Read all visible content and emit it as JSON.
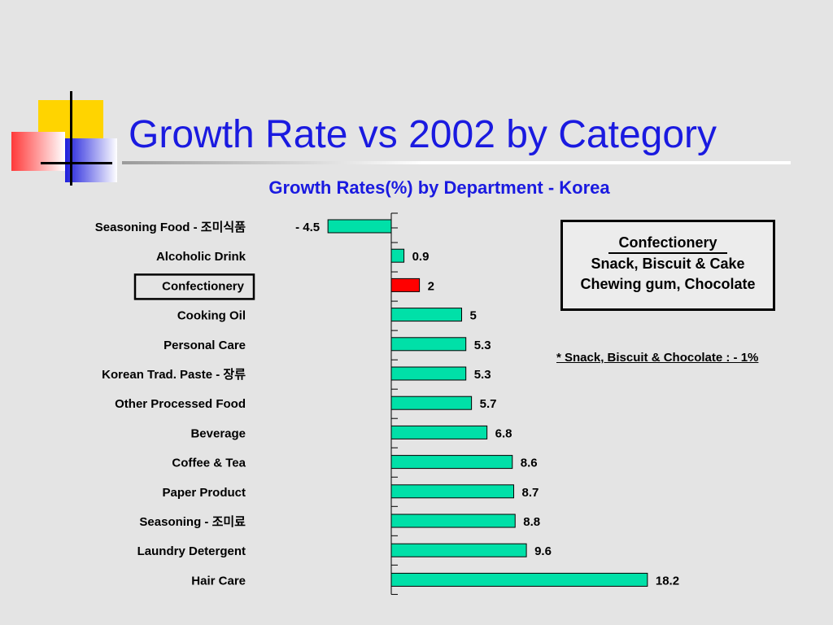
{
  "slide": {
    "title": "Growth Rate vs 2002 by Category"
  },
  "colors": {
    "bar": "#00e0a8",
    "highlight_bar": "#ff0000",
    "title_blue": "#1a1ae0"
  },
  "legend_box": {
    "heading": "Confectionery",
    "line1": "Snack, Biscuit & Cake",
    "line2": "Chewing gum, Chocolate"
  },
  "footnote": "* Snack, Biscuit & Chocolate : - 1%",
  "chart_data": {
    "type": "bar",
    "orientation": "horizontal",
    "title": "Growth Rates(%) by Department - Korea",
    "xlabel": "",
    "ylabel": "",
    "categories": [
      "Seasoning Food - 조미식품",
      "Alcoholic Drink",
      "Confectionery",
      "Cooking Oil",
      "Personal Care",
      "Korean Trad. Paste - 장류",
      "Other Processed Food",
      "Beverage",
      "Coffee & Tea",
      "Paper Product",
      "Seasoning - 조미료",
      "Laundry Detergent",
      "Hair Care"
    ],
    "values": [
      -4.5,
      0.9,
      2,
      5,
      5.3,
      5.3,
      5.7,
      6.8,
      8.6,
      8.7,
      8.8,
      9.6,
      18.2
    ],
    "value_labels": [
      "- 4.5",
      "0.9",
      "2",
      "5",
      "5.3",
      "5.3",
      "5.7",
      "6.8",
      "8.6",
      "8.7",
      "8.8",
      "9.6",
      "18.2"
    ],
    "highlighted_category": "Confectionery",
    "xlim": [
      -4.5,
      18.2
    ],
    "grid": false,
    "legend": "none"
  }
}
